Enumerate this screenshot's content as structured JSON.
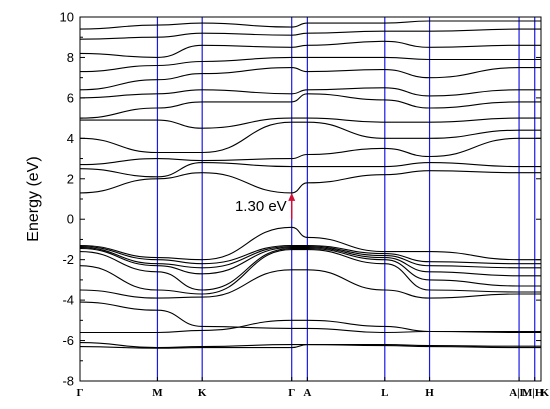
{
  "chart_data": {
    "type": "line",
    "title": "",
    "xlabel": "",
    "ylabel": "Energy (eV)",
    "ylim": [
      -8,
      10
    ],
    "yticks": [
      -8,
      -6,
      -4,
      -2,
      0,
      2,
      4,
      6,
      8,
      10
    ],
    "xlim": [
      0,
      10.3
    ],
    "kpoints": [
      {
        "label": "Γ",
        "x": 0.0
      },
      {
        "label": "M",
        "x": 1.73
      },
      {
        "label": "K",
        "x": 2.73
      },
      {
        "label": "Γ",
        "x": 4.73
      },
      {
        "label": "A",
        "x": 5.08
      },
      {
        "label": "L",
        "x": 6.81
      },
      {
        "label": "H",
        "x": 7.81
      },
      {
        "label": "A|L",
        "x": 9.81
      },
      {
        "label": "M|H",
        "x": 10.16
      },
      {
        "label": "K",
        "x": 10.3
      }
    ],
    "annotation": {
      "text": "1.30 eV",
      "x": 4.73,
      "y_from": 0.0,
      "y_to": 1.3
    },
    "colors": {
      "bands": "#000000",
      "kpoint_lines": "#1a1ae6",
      "arrow": "#d0103a"
    },
    "grid": false,
    "series": [
      {
        "y": [
          -6.3,
          -6.38,
          -6.35,
          -6.35,
          -6.2,
          -6.25,
          -6.3,
          -6.35,
          -6.35,
          -6.35
        ]
      },
      {
        "y": [
          -6.1,
          -6.35,
          -6.3,
          -6.2,
          -6.2,
          -6.2,
          -6.25,
          -6.28,
          -6.28,
          -6.28
        ]
      },
      {
        "y": [
          -5.6,
          -5.6,
          -5.5,
          -5.0,
          -5.0,
          -5.3,
          -5.55,
          -5.6,
          -5.6,
          -5.6
        ]
      },
      {
        "y": [
          -4.1,
          -4.5,
          -5.3,
          -5.4,
          -5.4,
          -5.6,
          -5.55,
          -5.55,
          -5.55,
          -5.55
        ]
      },
      {
        "y": [
          -3.5,
          -3.9,
          -3.85,
          -2.5,
          -2.5,
          -3.5,
          -3.9,
          -3.7,
          -3.7,
          -3.7
        ]
      },
      {
        "y": [
          -2.3,
          -3.5,
          -3.7,
          -1.5,
          -1.5,
          -2.2,
          -3.5,
          -3.6,
          -3.6,
          -3.6
        ]
      },
      {
        "y": [
          -1.6,
          -2.6,
          -3.5,
          -1.45,
          -1.45,
          -2.0,
          -3.0,
          -3.3,
          -3.3,
          -3.3
        ]
      },
      {
        "y": [
          -1.45,
          -2.3,
          -2.7,
          -1.4,
          -1.4,
          -1.9,
          -2.6,
          -2.8,
          -2.8,
          -2.8
        ]
      },
      {
        "y": [
          -1.4,
          -2.2,
          -2.4,
          -1.35,
          -1.35,
          -1.8,
          -2.3,
          -2.4,
          -2.4,
          -2.4
        ]
      },
      {
        "y": [
          -1.35,
          -2.0,
          -2.2,
          -1.3,
          -1.3,
          -1.7,
          -2.1,
          -2.2,
          -2.2,
          -2.2
        ]
      },
      {
        "y": [
          -1.3,
          -1.9,
          -2.0,
          -0.4,
          -0.9,
          -1.6,
          -1.6,
          -2.0,
          -2.0,
          -2.0
        ]
      },
      {
        "y": [
          1.3,
          2.0,
          2.3,
          1.3,
          1.8,
          2.2,
          2.4,
          2.3,
          2.3,
          2.3
        ]
      },
      {
        "y": [
          2.5,
          2.1,
          2.8,
          2.6,
          2.6,
          2.6,
          2.8,
          2.6,
          2.6,
          2.6
        ]
      },
      {
        "y": [
          2.7,
          3.0,
          2.9,
          3.0,
          3.2,
          3.5,
          3.1,
          4.0,
          4.0,
          4.0
        ]
      },
      {
        "y": [
          4.0,
          3.3,
          3.3,
          4.8,
          4.8,
          4.0,
          4.0,
          4.4,
          4.4,
          4.4
        ]
      },
      {
        "y": [
          4.9,
          4.9,
          4.5,
          5.0,
          5.0,
          4.8,
          4.8,
          5.0,
          5.0,
          5.0
        ]
      },
      {
        "y": [
          5.0,
          5.5,
          5.8,
          5.8,
          6.2,
          5.9,
          5.5,
          5.8,
          5.8,
          5.8
        ]
      },
      {
        "y": [
          6.0,
          6.2,
          6.4,
          6.2,
          6.4,
          6.5,
          6.1,
          6.4,
          6.4,
          6.4
        ]
      },
      {
        "y": [
          6.4,
          6.9,
          7.2,
          7.5,
          7.3,
          7.4,
          7.0,
          7.5,
          7.5,
          7.5
        ]
      },
      {
        "y": [
          7.3,
          7.6,
          7.8,
          8.0,
          8.0,
          8.0,
          7.9,
          7.9,
          7.9,
          7.9
        ]
      },
      {
        "y": [
          8.2,
          8.0,
          8.6,
          8.5,
          8.6,
          8.8,
          8.5,
          8.6,
          8.6,
          8.6
        ]
      },
      {
        "y": [
          8.9,
          9.0,
          9.2,
          9.1,
          9.2,
          9.3,
          9.3,
          9.4,
          9.4,
          9.4
        ]
      },
      {
        "y": [
          9.4,
          9.6,
          9.7,
          9.5,
          9.7,
          9.7,
          9.8,
          9.8,
          9.8,
          9.8
        ]
      }
    ]
  }
}
